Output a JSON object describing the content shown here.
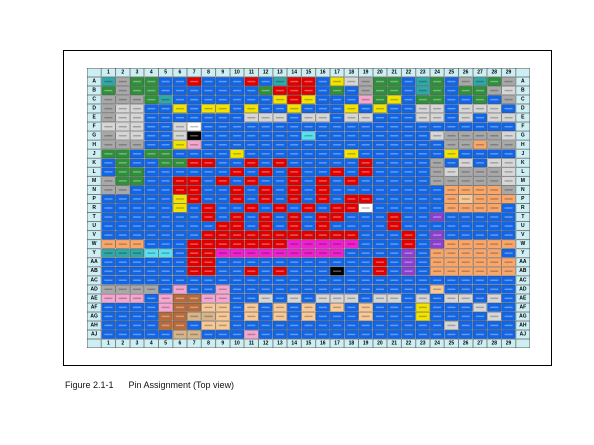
{
  "caption": {
    "number": "Figure 2.1-1",
    "title": "Pin Assignment (Top view)"
  },
  "column_labels": [
    "1",
    "2",
    "3",
    "4",
    "5",
    "6",
    "7",
    "8",
    "9",
    "10",
    "11",
    "12",
    "13",
    "14",
    "15",
    "16",
    "17",
    "18",
    "19",
    "20",
    "21",
    "22",
    "23",
    "24",
    "25",
    "26",
    "27",
    "28",
    "29"
  ],
  "row_labels": [
    "A",
    "B",
    "C",
    "D",
    "E",
    "F",
    "G",
    "H",
    "J",
    "K",
    "L",
    "M",
    "N",
    "P",
    "R",
    "T",
    "U",
    "V",
    "W",
    "Y",
    "AA",
    "AB",
    "AC",
    "AD",
    "AE",
    "AF",
    "AG",
    "AH",
    "AJ"
  ],
  "colors": {
    "header": "#cdeff4",
    "blue": "#1266e6",
    "red": "#e00000",
    "green": "#2f8f3a",
    "yellow": "#f2e400",
    "pink": "#f4a6d0",
    "magenta": "#f020d0",
    "purple": "#8a3fd0",
    "orange": "#f8a66a",
    "peach": "#f8c896",
    "tan": "#d8b48a",
    "brown": "#b86a3a",
    "gray": "#a8a8a8",
    "lightgray": "#d6d6d6",
    "teal": "#30a8a8",
    "cyan": "#58e0f0",
    "black": "#000000",
    "white": "#ffffff"
  }
}
